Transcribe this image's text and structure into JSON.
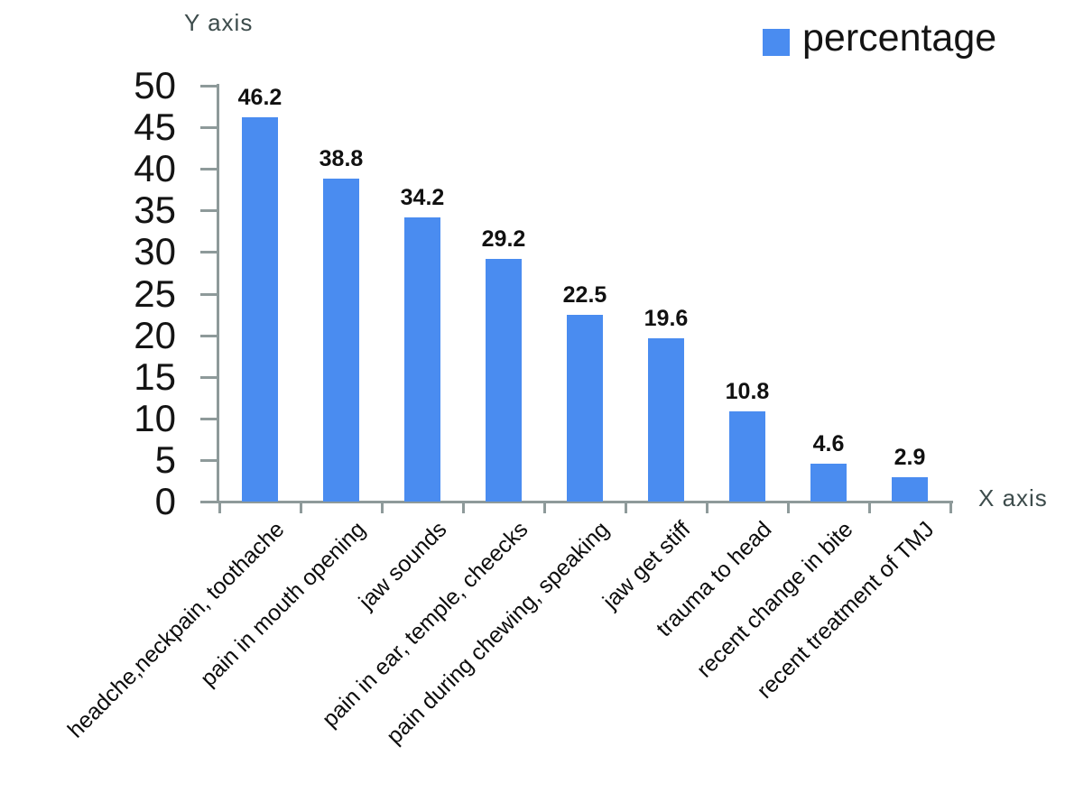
{
  "chart_data": {
    "type": "bar",
    "title": "",
    "xlabel": "X axis",
    "ylabel": "Y axis",
    "legend": {
      "label": "percentage",
      "position": "top-right"
    },
    "categories": [
      "headche,neckpain, toothache",
      "pain in mouth opening",
      "jaw sounds",
      "pain in ear, temple, cheecks",
      "pain during chewing, speaking",
      "jaw get stiff",
      "trauma to head",
      "recent change in bite",
      "recent treatment of TMJ"
    ],
    "values": [
      46.2,
      38.8,
      34.2,
      29.2,
      22.5,
      19.6,
      10.8,
      4.6,
      2.9
    ],
    "y_ticks": [
      0,
      5,
      10,
      15,
      20,
      25,
      30,
      35,
      40,
      45,
      50
    ],
    "ylim": [
      0,
      50
    ],
    "grid": false,
    "colors": {
      "bar": "#4a8cf0",
      "axis": "#8e9a9a",
      "tick_text": "#141414",
      "value_label_text": "#111111",
      "axis_title_text": "#3d4c4c"
    }
  }
}
